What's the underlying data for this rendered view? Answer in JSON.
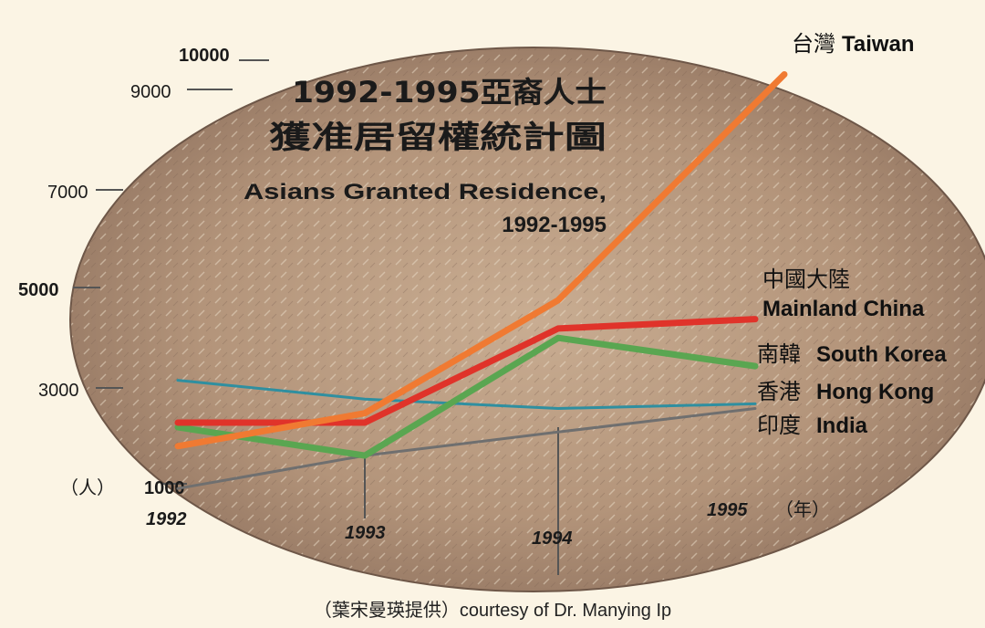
{
  "chart_data": {
    "type": "line",
    "title": "1992-1995亞裔人士獲准居留權統計圖",
    "title_line1": "1992-1995亞裔人士",
    "title_line2": "獲准居留權統計圖",
    "subtitle_line1": "Asians Granted Residence,",
    "subtitle_line2": "1992-1995",
    "y_unit": "（人）",
    "x_unit": "（年）",
    "x": [
      1992,
      1993,
      1994,
      1995
    ],
    "x_tick_labels": [
      "1992",
      "1993",
      "1994",
      "1995"
    ],
    "y_ticks": [
      1000,
      3000,
      5000,
      7000,
      9000,
      10000
    ],
    "y_tick_labels": [
      "1000",
      "3000",
      "5000",
      "7000",
      "9000",
      "10000"
    ],
    "ylim": [
      1000,
      10000
    ],
    "series": [
      {
        "name_cn": "台灣",
        "name_en": "Taiwan",
        "color": "#f07a32",
        "values": [
          1800,
          2500,
          4900,
          9700
        ]
      },
      {
        "name_cn": "中國大陸",
        "name_en": "Mainland China",
        "color": "#e0332a",
        "values": [
          2300,
          2300,
          4300,
          4500
        ]
      },
      {
        "name_cn": "南韓",
        "name_en": "South Korea",
        "color": "#5aa651",
        "values": [
          2200,
          1600,
          4100,
          3500
        ]
      },
      {
        "name_cn": "香港",
        "name_en": "Hong Kong",
        "color": "#2f8fa0",
        "values": [
          3200,
          2800,
          2600,
          2700
        ]
      },
      {
        "name_cn": "印度",
        "name_en": "India",
        "color": "#6f6f6f",
        "values": [
          900,
          1600,
          2100,
          2600
        ]
      }
    ],
    "grid": false,
    "legend": "right"
  },
  "credit": "（葉宋曼瑛提供）courtesy of Dr. Manying Ip"
}
